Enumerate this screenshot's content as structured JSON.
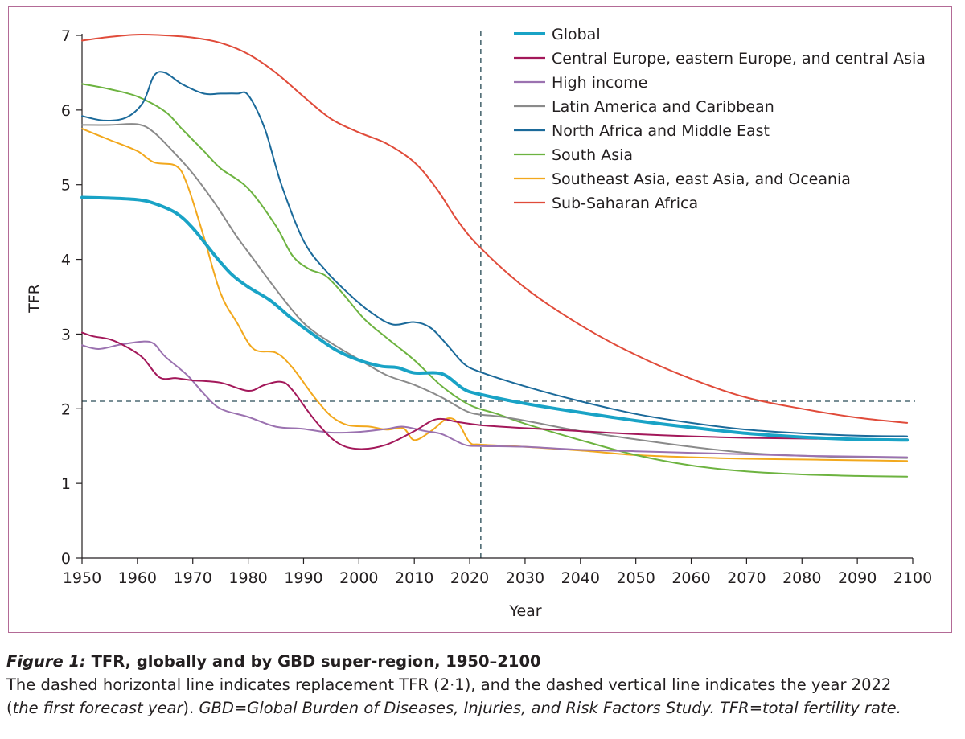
{
  "chart_data": {
    "type": "line",
    "xlabel": "Year",
    "ylabel": "TFR",
    "xlim": [
      1950,
      2100
    ],
    "ylim": [
      0,
      7
    ],
    "xticks": [
      1950,
      1960,
      1970,
      1980,
      1990,
      2000,
      2010,
      2020,
      2030,
      2040,
      2050,
      2060,
      2070,
      2080,
      2090,
      2100
    ],
    "yticks": [
      0,
      1,
      2,
      3,
      4,
      5,
      6,
      7
    ],
    "reference_lines": {
      "horizontal": {
        "value": 2.1,
        "style": "dashed",
        "color": "#4d6a73"
      },
      "vertical": {
        "value": 2022,
        "style": "dashed",
        "color": "#4d6a73"
      }
    },
    "legend_position": "top-right",
    "series": [
      {
        "name": "Global",
        "color": "#19a3c6",
        "width": 4,
        "points": [
          [
            1950,
            4.83
          ],
          [
            1955,
            4.82
          ],
          [
            1960,
            4.8
          ],
          [
            1963,
            4.75
          ],
          [
            1967,
            4.62
          ],
          [
            1970,
            4.42
          ],
          [
            1974,
            4.05
          ],
          [
            1977,
            3.8
          ],
          [
            1980,
            3.63
          ],
          [
            1984,
            3.45
          ],
          [
            1988,
            3.2
          ],
          [
            1992,
            2.98
          ],
          [
            1996,
            2.78
          ],
          [
            2000,
            2.65
          ],
          [
            2004,
            2.57
          ],
          [
            2007,
            2.55
          ],
          [
            2010,
            2.48
          ],
          [
            2014,
            2.48
          ],
          [
            2016,
            2.43
          ],
          [
            2019,
            2.26
          ],
          [
            2022,
            2.19
          ],
          [
            2030,
            2.07
          ],
          [
            2040,
            1.95
          ],
          [
            2050,
            1.84
          ],
          [
            2060,
            1.75
          ],
          [
            2070,
            1.67
          ],
          [
            2080,
            1.62
          ],
          [
            2090,
            1.59
          ],
          [
            2099,
            1.58
          ]
        ]
      },
      {
        "name": "Central Europe, eastern Europe, and central Asia",
        "color": "#a3185a",
        "width": 2,
        "points": [
          [
            1950,
            3.02
          ],
          [
            1952,
            2.97
          ],
          [
            1955,
            2.93
          ],
          [
            1958,
            2.83
          ],
          [
            1961,
            2.68
          ],
          [
            1964,
            2.42
          ],
          [
            1967,
            2.41
          ],
          [
            1970,
            2.38
          ],
          [
            1975,
            2.35
          ],
          [
            1980,
            2.24
          ],
          [
            1983,
            2.32
          ],
          [
            1986,
            2.36
          ],
          [
            1988,
            2.25
          ],
          [
            1992,
            1.85
          ],
          [
            1996,
            1.55
          ],
          [
            2000,
            1.46
          ],
          [
            2005,
            1.52
          ],
          [
            2010,
            1.7
          ],
          [
            2014,
            1.86
          ],
          [
            2018,
            1.82
          ],
          [
            2022,
            1.78
          ],
          [
            2030,
            1.74
          ],
          [
            2040,
            1.7
          ],
          [
            2050,
            1.66
          ],
          [
            2060,
            1.63
          ],
          [
            2070,
            1.61
          ],
          [
            2080,
            1.6
          ],
          [
            2090,
            1.59
          ],
          [
            2099,
            1.59
          ]
        ]
      },
      {
        "name": "High income",
        "color": "#9b72b0",
        "width": 2,
        "points": [
          [
            1950,
            2.85
          ],
          [
            1953,
            2.8
          ],
          [
            1957,
            2.86
          ],
          [
            1961,
            2.9
          ],
          [
            1963,
            2.87
          ],
          [
            1965,
            2.7
          ],
          [
            1969,
            2.45
          ],
          [
            1972,
            2.2
          ],
          [
            1975,
            2.0
          ],
          [
            1980,
            1.89
          ],
          [
            1985,
            1.76
          ],
          [
            1990,
            1.73
          ],
          [
            1995,
            1.68
          ],
          [
            2000,
            1.69
          ],
          [
            2005,
            1.73
          ],
          [
            2008,
            1.76
          ],
          [
            2012,
            1.7
          ],
          [
            2015,
            1.66
          ],
          [
            2019,
            1.52
          ],
          [
            2022,
            1.5
          ],
          [
            2030,
            1.49
          ],
          [
            2040,
            1.45
          ],
          [
            2050,
            1.43
          ],
          [
            2060,
            1.41
          ],
          [
            2070,
            1.39
          ],
          [
            2080,
            1.37
          ],
          [
            2090,
            1.36
          ],
          [
            2099,
            1.35
          ]
        ]
      },
      {
        "name": "Latin America and Caribbean",
        "color": "#8a8a8a",
        "width": 2,
        "points": [
          [
            1950,
            5.8
          ],
          [
            1955,
            5.8
          ],
          [
            1960,
            5.81
          ],
          [
            1963,
            5.7
          ],
          [
            1967,
            5.4
          ],
          [
            1970,
            5.15
          ],
          [
            1974,
            4.75
          ],
          [
            1978,
            4.3
          ],
          [
            1981,
            4.0
          ],
          [
            1985,
            3.6
          ],
          [
            1990,
            3.15
          ],
          [
            1995,
            2.88
          ],
          [
            2000,
            2.66
          ],
          [
            2005,
            2.45
          ],
          [
            2010,
            2.32
          ],
          [
            2015,
            2.15
          ],
          [
            2020,
            1.95
          ],
          [
            2025,
            1.9
          ],
          [
            2030,
            1.84
          ],
          [
            2040,
            1.7
          ],
          [
            2050,
            1.59
          ],
          [
            2060,
            1.49
          ],
          [
            2070,
            1.41
          ],
          [
            2080,
            1.37
          ],
          [
            2090,
            1.35
          ],
          [
            2099,
            1.34
          ]
        ]
      },
      {
        "name": "North Africa and Middle East",
        "color": "#1b6a9a",
        "width": 2,
        "points": [
          [
            1950,
            5.92
          ],
          [
            1954,
            5.86
          ],
          [
            1958,
            5.9
          ],
          [
            1961,
            6.1
          ],
          [
            1963,
            6.46
          ],
          [
            1965,
            6.5
          ],
          [
            1968,
            6.35
          ],
          [
            1972,
            6.22
          ],
          [
            1975,
            6.22
          ],
          [
            1978,
            6.22
          ],
          [
            1980,
            6.2
          ],
          [
            1983,
            5.75
          ],
          [
            1986,
            5.0
          ],
          [
            1990,
            4.25
          ],
          [
            1994,
            3.85
          ],
          [
            1998,
            3.55
          ],
          [
            2002,
            3.3
          ],
          [
            2006,
            3.13
          ],
          [
            2010,
            3.16
          ],
          [
            2013,
            3.08
          ],
          [
            2016,
            2.85
          ],
          [
            2019,
            2.6
          ],
          [
            2022,
            2.49
          ],
          [
            2030,
            2.3
          ],
          [
            2040,
            2.1
          ],
          [
            2050,
            1.93
          ],
          [
            2060,
            1.81
          ],
          [
            2070,
            1.72
          ],
          [
            2080,
            1.67
          ],
          [
            2090,
            1.64
          ],
          [
            2099,
            1.63
          ]
        ]
      },
      {
        "name": "South Asia",
        "color": "#6db340",
        "width": 2,
        "points": [
          [
            1950,
            6.35
          ],
          [
            1955,
            6.28
          ],
          [
            1960,
            6.18
          ],
          [
            1965,
            5.98
          ],
          [
            1968,
            5.75
          ],
          [
            1972,
            5.45
          ],
          [
            1975,
            5.22
          ],
          [
            1980,
            4.95
          ],
          [
            1985,
            4.45
          ],
          [
            1988,
            4.05
          ],
          [
            1991,
            3.87
          ],
          [
            1994,
            3.78
          ],
          [
            1997,
            3.55
          ],
          [
            2001,
            3.2
          ],
          [
            2005,
            2.95
          ],
          [
            2010,
            2.65
          ],
          [
            2015,
            2.3
          ],
          [
            2020,
            2.05
          ],
          [
            2025,
            1.93
          ],
          [
            2030,
            1.8
          ],
          [
            2040,
            1.58
          ],
          [
            2050,
            1.38
          ],
          [
            2060,
            1.24
          ],
          [
            2070,
            1.16
          ],
          [
            2080,
            1.12
          ],
          [
            2090,
            1.1
          ],
          [
            2099,
            1.09
          ]
        ]
      },
      {
        "name": "Southeast Asia, east Asia, and Oceania",
        "color": "#f2a81d",
        "width": 2,
        "points": [
          [
            1950,
            5.75
          ],
          [
            1955,
            5.6
          ],
          [
            1960,
            5.45
          ],
          [
            1963,
            5.3
          ],
          [
            1967,
            5.25
          ],
          [
            1969,
            5.0
          ],
          [
            1972,
            4.3
          ],
          [
            1975,
            3.55
          ],
          [
            1978,
            3.15
          ],
          [
            1981,
            2.8
          ],
          [
            1985,
            2.75
          ],
          [
            1988,
            2.55
          ],
          [
            1992,
            2.15
          ],
          [
            1995,
            1.9
          ],
          [
            1998,
            1.78
          ],
          [
            2002,
            1.76
          ],
          [
            2005,
            1.72
          ],
          [
            2008,
            1.74
          ],
          [
            2010,
            1.58
          ],
          [
            2013,
            1.7
          ],
          [
            2016,
            1.87
          ],
          [
            2018,
            1.8
          ],
          [
            2020,
            1.55
          ],
          [
            2022,
            1.52
          ],
          [
            2030,
            1.49
          ],
          [
            2040,
            1.44
          ],
          [
            2050,
            1.38
          ],
          [
            2060,
            1.35
          ],
          [
            2070,
            1.33
          ],
          [
            2080,
            1.32
          ],
          [
            2090,
            1.31
          ],
          [
            2099,
            1.3
          ]
        ]
      },
      {
        "name": "Sub-Saharan Africa",
        "color": "#e04b3a",
        "width": 2,
        "points": [
          [
            1950,
            6.93
          ],
          [
            1955,
            6.98
          ],
          [
            1960,
            7.01
          ],
          [
            1965,
            7.0
          ],
          [
            1970,
            6.97
          ],
          [
            1975,
            6.9
          ],
          [
            1980,
            6.75
          ],
          [
            1985,
            6.5
          ],
          [
            1990,
            6.18
          ],
          [
            1995,
            5.88
          ],
          [
            2000,
            5.7
          ],
          [
            2005,
            5.55
          ],
          [
            2010,
            5.3
          ],
          [
            2014,
            4.95
          ],
          [
            2018,
            4.5
          ],
          [
            2022,
            4.15
          ],
          [
            2030,
            3.62
          ],
          [
            2040,
            3.12
          ],
          [
            2050,
            2.72
          ],
          [
            2060,
            2.4
          ],
          [
            2070,
            2.15
          ],
          [
            2080,
            2.0
          ],
          [
            2090,
            1.88
          ],
          [
            2099,
            1.81
          ]
        ]
      }
    ]
  },
  "caption": {
    "label": "Figure 1:",
    "title": " TFR, globally and by GBD super-region, 1950–2100",
    "line1": "The dashed horizontal line indicates replacement TFR (2·1), and the dashed vertical line indicates the year 2022",
    "line2_paren_open": "(",
    "line2_italic": "the first forecast year",
    "line2_mid": "). ",
    "line2_rest": "GBD=Global Burden of Diseases, Injuries, and Risk Factors Study. TFR=total fertility rate."
  }
}
